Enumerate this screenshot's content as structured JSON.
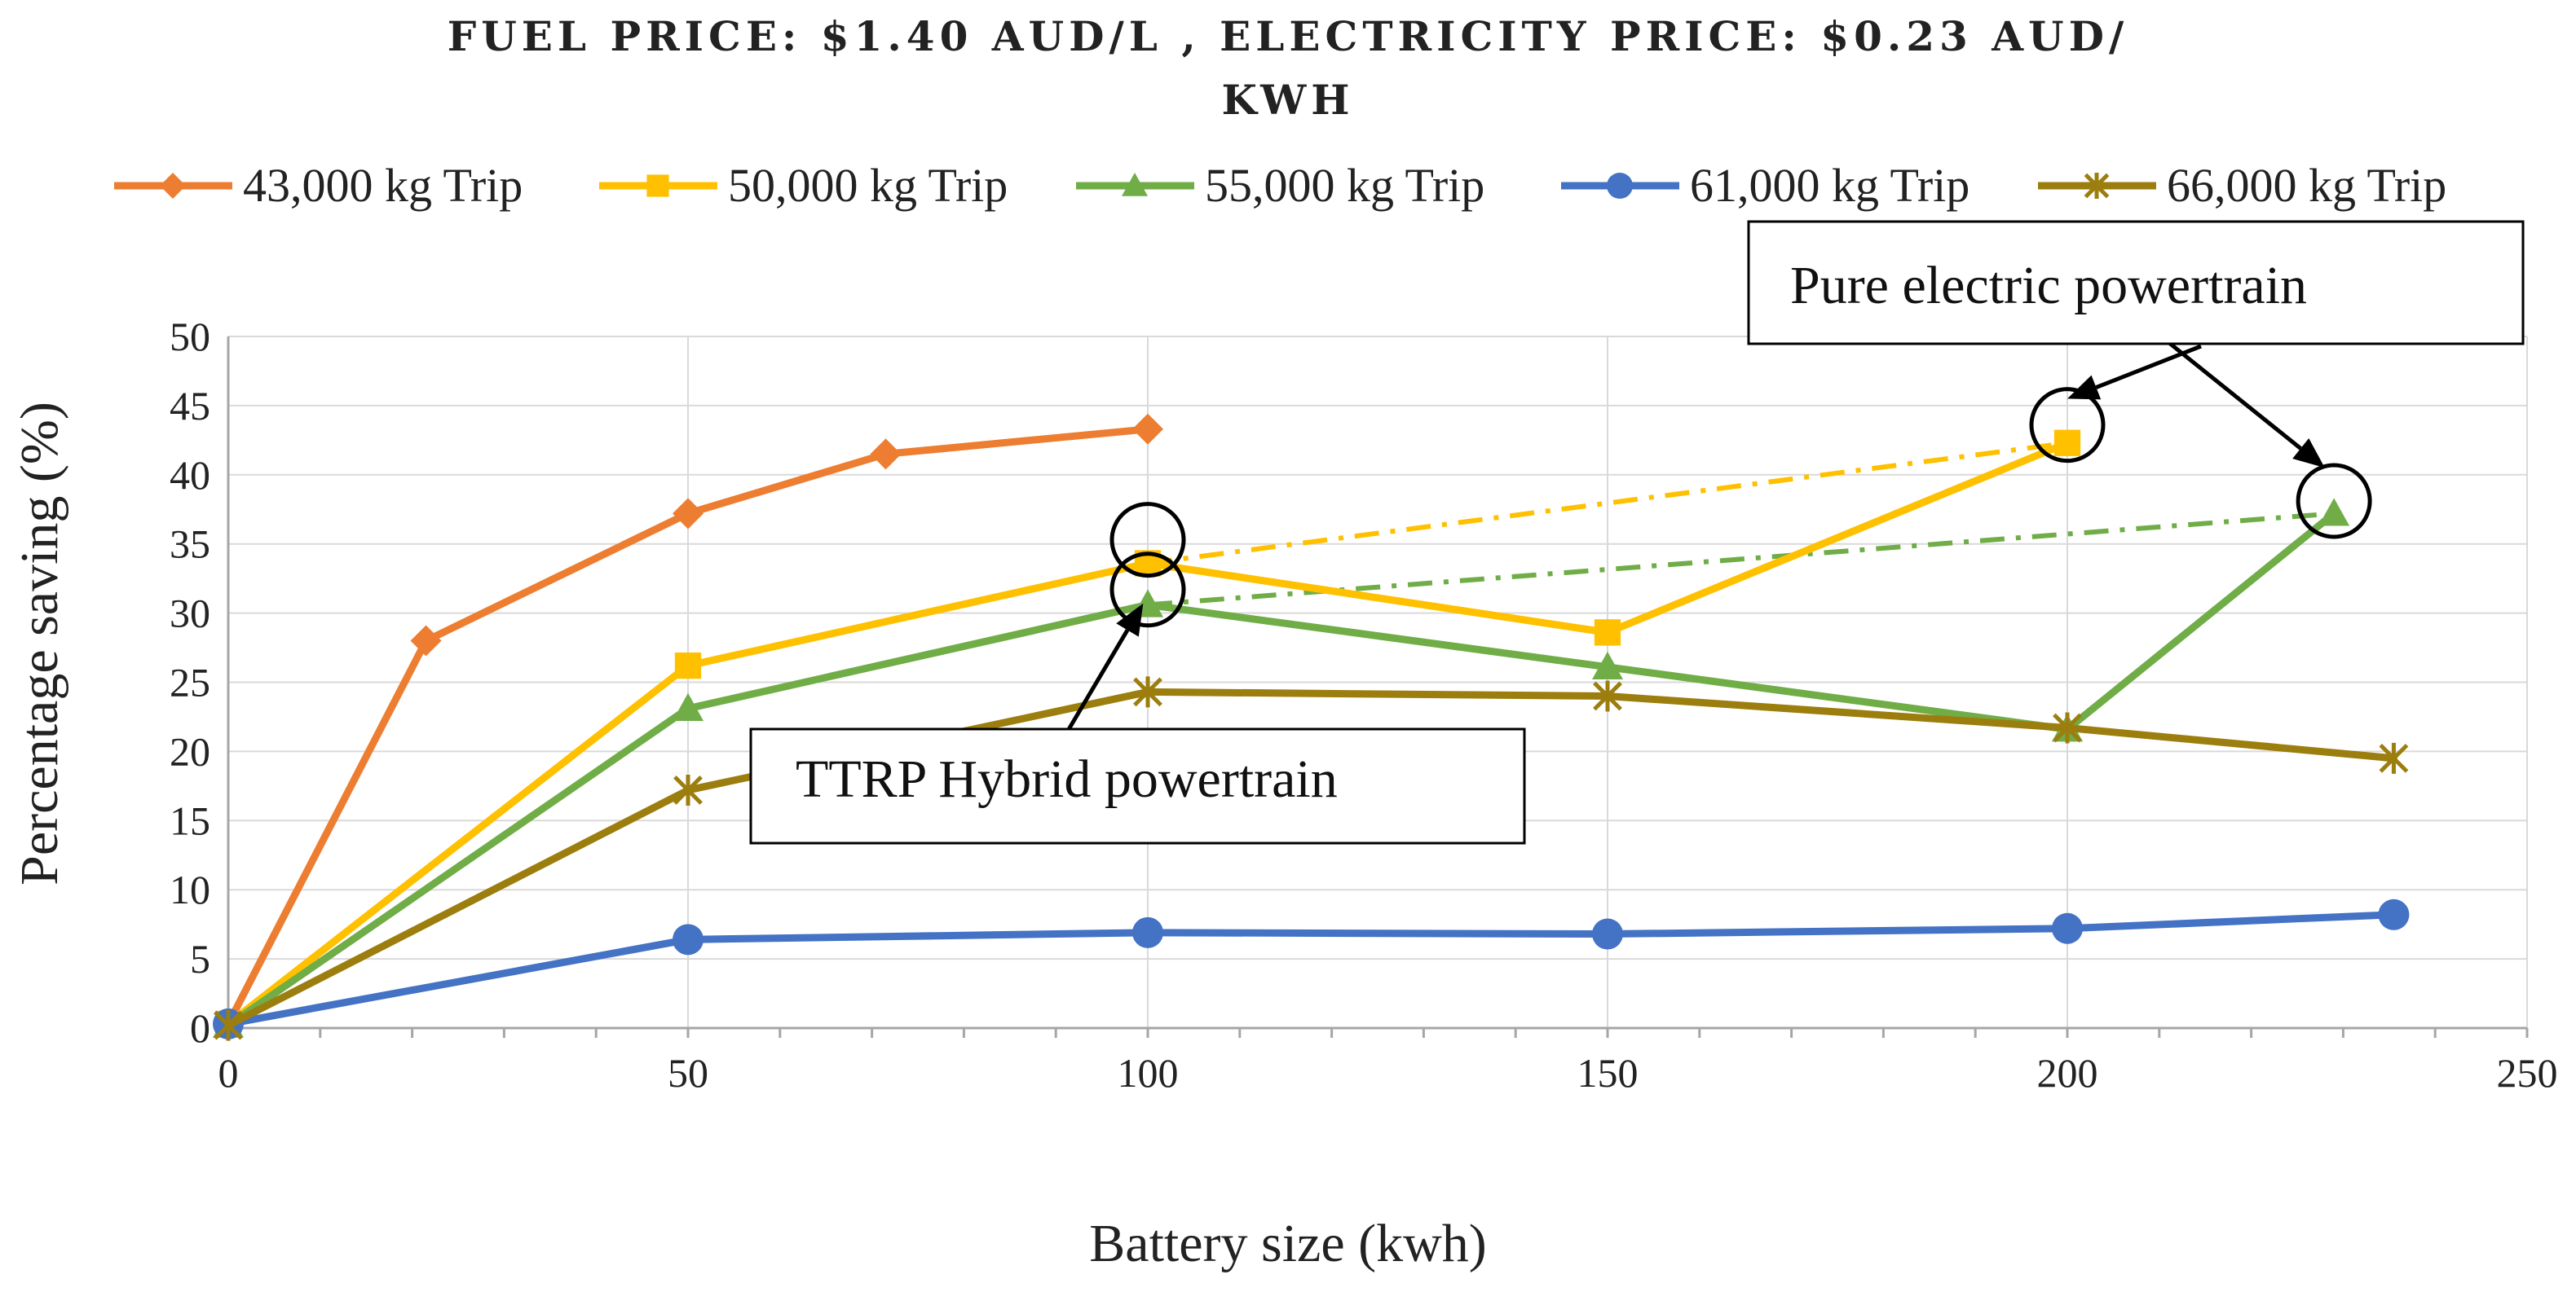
{
  "chart_data": {
    "type": "line",
    "title_line1": "FUEL PRICE: $1.40 AUD/L , ELECTRICITY PRICE: $0.23 AUD/",
    "title_line2": "KWH",
    "xlabel": "Battery size (kwh)",
    "ylabel": "Percentage saving (%)",
    "xlim": [
      0,
      250
    ],
    "ylim": [
      0,
      50
    ],
    "x_ticks": [
      0,
      50,
      100,
      150,
      200,
      250
    ],
    "y_ticks": [
      0,
      5,
      10,
      15,
      20,
      25,
      30,
      35,
      40,
      45,
      50
    ],
    "grid": true,
    "legend_position": "top",
    "series": [
      {
        "name": "43,000 kg Trip",
        "color": "#ED7D31",
        "marker": "diamond",
        "x": [
          0,
          21.5,
          50,
          71.5,
          100
        ],
        "y": [
          0.3,
          28,
          37.2,
          41.5,
          43.3
        ]
      },
      {
        "name": "50,000 kg Trip",
        "color": "#FFC000",
        "marker": "square",
        "x": [
          0,
          50,
          100,
          150,
          200
        ],
        "y": [
          0.3,
          26.2,
          33.6,
          28.6,
          42.3
        ]
      },
      {
        "name": "55,000 kg Trip",
        "color": "#70AD47",
        "marker": "triangle",
        "x": [
          0,
          50,
          100,
          150,
          200,
          229
        ],
        "y": [
          0.2,
          23.1,
          30.6,
          26.1,
          21.6,
          37.2
        ]
      },
      {
        "name": "61,000 kg Trip",
        "color": "#4472C4",
        "marker": "circle",
        "x": [
          0,
          50,
          100,
          150,
          200,
          235.5
        ],
        "y": [
          0.3,
          6.4,
          6.9,
          6.8,
          7.2,
          8.2
        ]
      },
      {
        "name": "66,000 kg Trip",
        "color": "#9C7E0E",
        "marker": "star",
        "x": [
          0,
          50,
          100,
          150,
          200,
          235.5
        ],
        "y": [
          0.2,
          17.2,
          24.3,
          24.0,
          21.7,
          19.5
        ]
      }
    ],
    "dashed_trends": [
      {
        "series": "50,000 kg Trip",
        "color": "#FFC000",
        "x": [
          100,
          200
        ],
        "y": [
          33.6,
          42.3
        ]
      },
      {
        "series": "55,000 kg Trip",
        "color": "#70AD47",
        "x": [
          100,
          229
        ],
        "y": [
          30.6,
          37.2
        ]
      }
    ],
    "annotations": [
      {
        "text": "Pure electric powertrain",
        "circles": [
          {
            "x": 200,
            "y": 43.6
          },
          {
            "x": 229,
            "y": 38.1
          }
        ],
        "arrow_targets": [
          {
            "x": 200,
            "y": 45.5
          },
          {
            "x": 228,
            "y": 40.5
          }
        ]
      },
      {
        "text": "TTRP Hybrid powertrain",
        "circles": [
          {
            "x": 100,
            "y": 35.3
          },
          {
            "x": 100,
            "y": 31.7
          }
        ],
        "arrow_targets": [
          {
            "x": 99.5,
            "y": 30.7
          }
        ]
      }
    ]
  }
}
